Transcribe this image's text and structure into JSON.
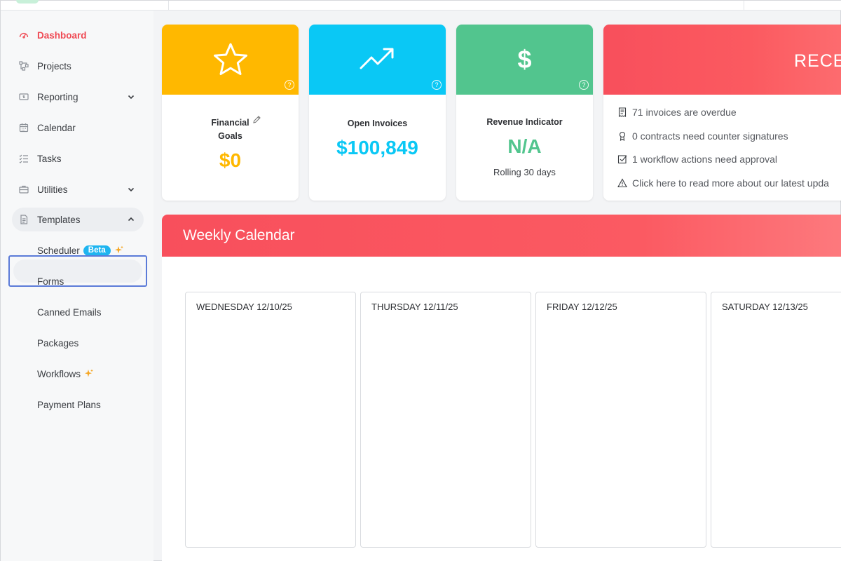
{
  "sidebar": {
    "items": [
      {
        "label": "Dashboard",
        "icon": "dashboard-icon"
      },
      {
        "label": "Projects",
        "icon": "projects-icon"
      },
      {
        "label": "Reporting",
        "icon": "reporting-icon"
      },
      {
        "label": "Calendar",
        "icon": "calendar-icon"
      },
      {
        "label": "Tasks",
        "icon": "tasks-icon"
      },
      {
        "label": "Utilities",
        "icon": "utilities-icon"
      },
      {
        "label": "Templates",
        "icon": "templates-icon"
      }
    ],
    "templates_sub": [
      {
        "label": "Scheduler",
        "badge": "Beta"
      },
      {
        "label": "Forms"
      },
      {
        "label": "Canned Emails"
      },
      {
        "label": "Packages"
      },
      {
        "label": "Workflows"
      },
      {
        "label": "Payment Plans"
      }
    ]
  },
  "cards": {
    "financial": {
      "label_line1": "Financial",
      "label_line2": "Goals",
      "value": "$0",
      "color": "#ffb800"
    },
    "invoices": {
      "label": "Open Invoices",
      "value": "$100,849",
      "color": "#0ac8f5"
    },
    "revenue": {
      "label": "Revenue Indicator",
      "value": "N/A",
      "sub": "Rolling 30 days",
      "color": "#52c58e",
      "banner_symbol": "$"
    }
  },
  "recent": {
    "title": "RECE",
    "rows": [
      "71 invoices are overdue",
      "0 contracts need counter signatures",
      "1 workflow actions need approval",
      "Click here to read more about our latest upda"
    ]
  },
  "calendar": {
    "title": "Weekly Calendar",
    "days": [
      "WEDNESDAY 12/10/25",
      "THURSDAY 12/11/25",
      "FRIDAY 12/12/25",
      "SATURDAY 12/13/25"
    ]
  },
  "qmark": "?"
}
